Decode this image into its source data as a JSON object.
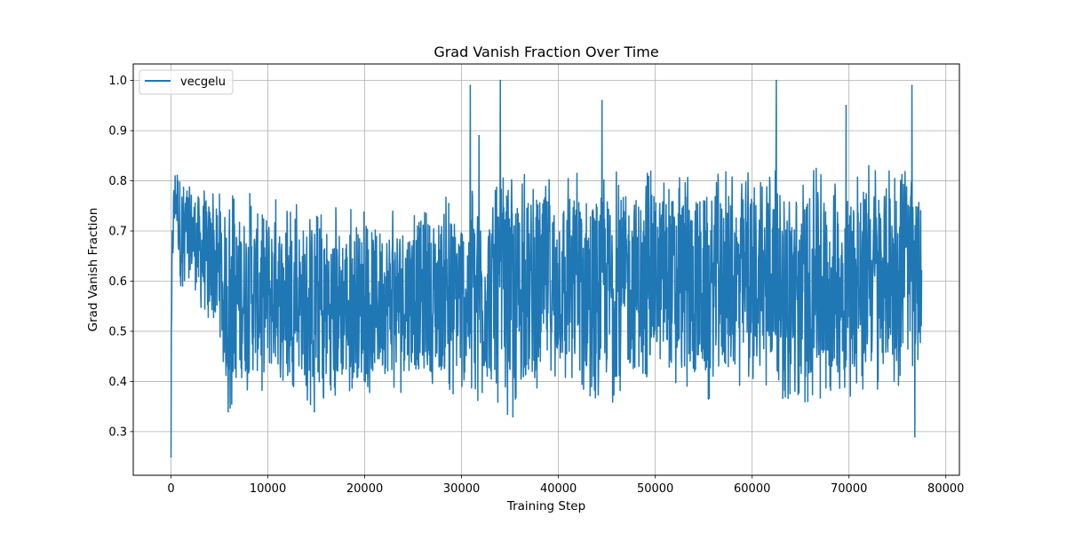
{
  "chart_data": {
    "type": "line",
    "title": "Grad Vanish Fraction Over Time",
    "xlabel": "Training Step",
    "ylabel": "Grad Vanish Fraction",
    "xlim": [
      -3900,
      81400
    ],
    "ylim": [
      0.213,
      1.033
    ],
    "xticks": [
      0,
      10000,
      20000,
      30000,
      40000,
      50000,
      60000,
      70000,
      80000
    ],
    "xtick_labels": [
      "0",
      "10000",
      "20000",
      "30000",
      "40000",
      "50000",
      "60000",
      "70000",
      "80000"
    ],
    "yticks": [
      0.3,
      0.4,
      0.5,
      0.6,
      0.7,
      0.8,
      0.9,
      1.0
    ],
    "ytick_labels": [
      "0.3",
      "0.4",
      "0.5",
      "0.6",
      "0.7",
      "0.8",
      "0.9",
      "1.0"
    ],
    "grid": true,
    "legend": {
      "placement": "upper-left",
      "entries": [
        "vecgelu"
      ]
    },
    "color": "#1f77b4",
    "series": [
      {
        "name": "vecgelu",
        "x_range": [
          0,
          77500
        ],
        "envelope": [
          {
            "x": 0,
            "low": 0.25,
            "high": 0.45
          },
          {
            "x": 150,
            "low": 0.59,
            "high": 0.8
          },
          {
            "x": 500,
            "low": 0.7,
            "high": 0.86
          },
          {
            "x": 1000,
            "low": 0.56,
            "high": 0.83
          },
          {
            "x": 2000,
            "low": 0.6,
            "high": 0.81
          },
          {
            "x": 3000,
            "low": 0.51,
            "high": 0.8
          },
          {
            "x": 4000,
            "low": 0.5,
            "high": 0.79
          },
          {
            "x": 5000,
            "low": 0.46,
            "high": 0.78
          },
          {
            "x": 6000,
            "low": 0.34,
            "high": 0.77
          },
          {
            "x": 8000,
            "low": 0.37,
            "high": 0.78
          },
          {
            "x": 10000,
            "low": 0.37,
            "high": 0.78
          },
          {
            "x": 12000,
            "low": 0.4,
            "high": 0.75
          },
          {
            "x": 15000,
            "low": 0.34,
            "high": 0.76
          },
          {
            "x": 20000,
            "low": 0.37,
            "high": 0.74
          },
          {
            "x": 25000,
            "low": 0.38,
            "high": 0.76
          },
          {
            "x": 30000,
            "low": 0.37,
            "high": 0.78
          },
          {
            "x": 35000,
            "low": 0.33,
            "high": 0.81
          },
          {
            "x": 40000,
            "low": 0.38,
            "high": 0.82
          },
          {
            "x": 45000,
            "low": 0.35,
            "high": 0.82
          },
          {
            "x": 50000,
            "low": 0.39,
            "high": 0.82
          },
          {
            "x": 55000,
            "low": 0.35,
            "high": 0.82
          },
          {
            "x": 60000,
            "low": 0.39,
            "high": 0.82
          },
          {
            "x": 65000,
            "low": 0.35,
            "high": 0.83
          },
          {
            "x": 70000,
            "low": 0.37,
            "high": 0.83
          },
          {
            "x": 75000,
            "low": 0.39,
            "high": 0.84
          },
          {
            "x": 77500,
            "low": 0.44,
            "high": 0.79
          }
        ],
        "spikes": [
          {
            "x": 30900,
            "value": 0.99
          },
          {
            "x": 31800,
            "value": 0.89
          },
          {
            "x": 34000,
            "value": 1.0
          },
          {
            "x": 44500,
            "value": 0.96
          },
          {
            "x": 62500,
            "value": 1.0
          },
          {
            "x": 69700,
            "value": 0.95
          },
          {
            "x": 76500,
            "value": 0.99
          }
        ],
        "dips": [
          {
            "x": 0,
            "value": 0.25
          },
          {
            "x": 5900,
            "value": 0.34
          },
          {
            "x": 14800,
            "value": 0.34
          },
          {
            "x": 35300,
            "value": 0.33
          },
          {
            "x": 76800,
            "value": 0.29
          }
        ]
      }
    ]
  }
}
